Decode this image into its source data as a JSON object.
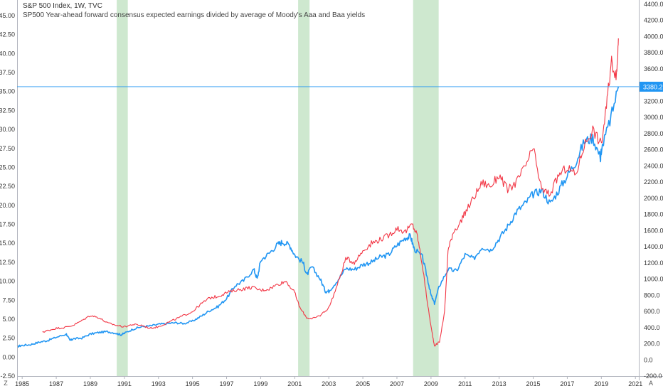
{
  "chart_data": {
    "type": "line",
    "title": "S&P 500 Index, 1W, TVC",
    "subtitle": "SP500 Year-ahead forward consensus expected earnings divided by average of Moody's Aaa and Baa yields",
    "x_ticks": [
      "1985",
      "1987",
      "1989",
      "1991",
      "1993",
      "1995",
      "1997",
      "1999",
      "2001",
      "2003",
      "2005",
      "2007",
      "2009",
      "2011",
      "2013",
      "2015",
      "2017",
      "2019",
      "2021"
    ],
    "xlim": [
      1984.7,
      2021.2
    ],
    "left_axis": {
      "ylim": [
        -2.5,
        45.0
      ],
      "ticks": [
        "-2.50",
        "0.00",
        "2.50",
        "5.00",
        "7.50",
        "10.00",
        "12.50",
        "15.00",
        "17.50",
        "20.00",
        "22.50",
        "25.00",
        "27.50",
        "30.00",
        "32.50",
        "35.00",
        "37.50",
        "40.00",
        "42.50",
        "45.00"
      ]
    },
    "right_axis": {
      "ylim": [
        -200,
        4400
      ],
      "ticks": [
        "-200.0",
        "0.0",
        "200.0",
        "400.0",
        "600.0",
        "800.0",
        "1000.0",
        "1200.0",
        "1400.0",
        "1600.0",
        "1800.0",
        "2000.0",
        "2200.0",
        "2400.0",
        "2600.0",
        "2800.0",
        "3000.0",
        "3200.0",
        "3400.0",
        "3600.0",
        "3800.0",
        "4000.0",
        "4200.0",
        "4400.0"
      ],
      "last_value_label": "3380.2",
      "last_value": 3380.2
    },
    "recessions": [
      [
        1990.55,
        1991.2
      ],
      [
        2001.2,
        2001.87
      ],
      [
        2007.95,
        2009.45
      ]
    ],
    "series": [
      {
        "axis": "right",
        "color": "#2196f3",
        "x": [
          1984.7,
          1985,
          1985.5,
          1986,
          1986.5,
          1987,
          1987.6,
          1987.8,
          1988,
          1988.5,
          1989,
          1989.5,
          1990,
          1990.5,
          1990.8,
          1991,
          1991.5,
          1992,
          1992.5,
          1993,
          1993.5,
          1994,
          1994.5,
          1995,
          1995.5,
          1996,
          1996.5,
          1997,
          1997.5,
          1998,
          1998.6,
          1998.8,
          1999,
          1999.5,
          2000,
          2000.3,
          2000.7,
          2001,
          2001.5,
          2001.7,
          2002,
          2002.5,
          2002.8,
          2003,
          2003.5,
          2004,
          2004.5,
          2005,
          2005.5,
          2006,
          2006.5,
          2007,
          2007.5,
          2007.8,
          2008,
          2008.5,
          2008.8,
          2009,
          2009.2,
          2009.5,
          2010,
          2010.5,
          2011,
          2011.5,
          2012,
          2012.5,
          2013,
          2013.5,
          2014,
          2014.5,
          2015,
          2015.5,
          2016,
          2016.5,
          2017,
          2017.5,
          2018,
          2018.5,
          2018.95,
          2019,
          2019.5,
          2020.0
        ],
        "values": [
          165,
          180,
          190,
          220,
          240,
          280,
          320,
          240,
          260,
          270,
          320,
          340,
          350,
          330,
          310,
          330,
          380,
          410,
          420,
          440,
          450,
          460,
          450,
          480,
          540,
          610,
          660,
          760,
          920,
          980,
          1120,
          1000,
          1230,
          1320,
          1430,
          1460,
          1420,
          1300,
          1200,
          1050,
          1150,
          1000,
          850,
          850,
          980,
          1130,
          1120,
          1180,
          1210,
          1270,
          1300,
          1420,
          1510,
          1530,
          1380,
          1270,
          1000,
          800,
          700,
          920,
          1120,
          1100,
          1300,
          1250,
          1400,
          1360,
          1500,
          1650,
          1830,
          1930,
          2050,
          2100,
          1930,
          2100,
          2280,
          2450,
          2700,
          2750,
          2500,
          2600,
          2950,
          3380
        ]
      },
      {
        "axis": "left",
        "color": "#f23645",
        "x": [
          1986.2,
          1986.5,
          1987,
          1987.5,
          1988,
          1988.5,
          1989,
          1989.5,
          1990,
          1990.5,
          1991,
          1991.5,
          1992,
          1992.5,
          1993,
          1993.5,
          1994,
          1994.5,
          1995,
          1995.5,
          1996,
          1996.5,
          1997,
          1997.5,
          1998,
          1998.5,
          1999,
          1999.5,
          2000,
          2000.5,
          2001,
          2001.3,
          2001.7,
          2002,
          2002.5,
          2003,
          2003.5,
          2004,
          2004.5,
          2005,
          2005.5,
          2006,
          2006.5,
          2007,
          2007.5,
          2007.9,
          2008.2,
          2008.5,
          2008.8,
          2009.0,
          2009.2,
          2009.5,
          2009.8,
          2010,
          2010.3,
          2010.8,
          2011,
          2011.5,
          2012,
          2012.5,
          2013,
          2013.5,
          2014,
          2014.5,
          2015,
          2015.5,
          2016,
          2016.5,
          2017,
          2017.5,
          2018,
          2018.5,
          2019,
          2019.3,
          2019.6,
          2019.9,
          2020.0
        ],
        "values": [
          3.3,
          3.5,
          3.8,
          3.9,
          4.2,
          4.8,
          5.5,
          5.2,
          4.5,
          4.2,
          4.0,
          4.3,
          4.2,
          3.8,
          4.0,
          4.5,
          5.0,
          5.5,
          6.0,
          7.0,
          7.8,
          8.0,
          8.5,
          8.8,
          9.0,
          9.2,
          8.8,
          9.0,
          9.6,
          10.0,
          8.5,
          6.5,
          5.2,
          5.0,
          5.5,
          6.5,
          9.5,
          13.0,
          12.5,
          14.0,
          15.0,
          15.5,
          16.0,
          17.0,
          16.5,
          17.5,
          16.0,
          12.0,
          7.0,
          4.0,
          1.5,
          2.0,
          6.0,
          14.0,
          16.5,
          18.0,
          19.0,
          21.0,
          23.0,
          22.5,
          24.0,
          22.0,
          23.0,
          25.0,
          27.5,
          22.0,
          21.5,
          24.0,
          25.0,
          24.0,
          28.0,
          30.0,
          28.0,
          33.0,
          39.0,
          37.0,
          42.0
        ]
      }
    ]
  },
  "ui": {
    "bottom_left_button": "Z",
    "bottom_right_button": "A"
  }
}
